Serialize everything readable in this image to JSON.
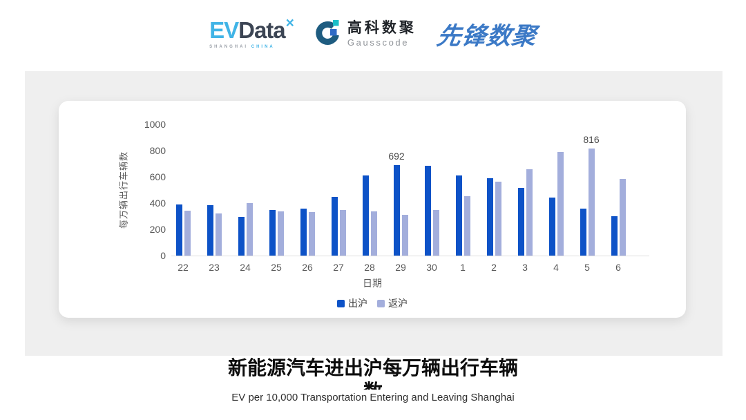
{
  "header": {
    "logos": {
      "evdata": {
        "ev": "EV",
        "data": "Data",
        "mark": "×",
        "sub_left": "SHANGHAI",
        "sub_right": "CHINA"
      },
      "gausscode": {
        "cn": "高科数聚",
        "en": "Gausscode"
      },
      "xianfeng": {
        "text": "先锋数聚"
      }
    }
  },
  "colors": {
    "evdata_cyan": "#41B4E6",
    "evdata_dark": "#3C4554",
    "evdata_sub_gray": "#9aa0a8",
    "gausscode_navy": "#1E5C80",
    "gausscode_teal": "#1CBFC9",
    "gausscode_blue": "#2F6BC6",
    "xianfeng_blue": "#3B79C6",
    "bar_dark": "#0D52C7",
    "bar_light": "#A3AEDC",
    "axis_text": "#595959",
    "panel_gray": "#efefef"
  },
  "chart_data": {
    "type": "bar",
    "title": "新能源汽车进出沪每万辆出行车辆数",
    "categories": [
      "22",
      "23",
      "24",
      "25",
      "26",
      "27",
      "28",
      "29",
      "30",
      "1",
      "2",
      "3",
      "4",
      "5",
      "6"
    ],
    "series": [
      {
        "name": "出沪",
        "color": "#0D52C7",
        "values": [
          390,
          385,
          295,
          348,
          360,
          448,
          608,
          692,
          682,
          610,
          588,
          515,
          440,
          358,
          298
        ]
      },
      {
        "name": "返沪",
        "color": "#A3AEDC",
        "values": [
          340,
          320,
          400,
          338,
          333,
          346,
          335,
          310,
          350,
          452,
          562,
          660,
          788,
          816,
          586
        ]
      }
    ],
    "label_points": [
      {
        "series_index": 0,
        "category_index": 7,
        "text": "692"
      },
      {
        "series_index": 1,
        "category_index": 13,
        "text": "816"
      }
    ],
    "ylabel": "每万辆出行车辆数",
    "xlabel": "日期",
    "ylim": [
      0,
      1000
    ],
    "yticks": [
      0,
      200,
      400,
      600,
      800,
      1000
    ],
    "grid": false,
    "legend_position": "bottom"
  },
  "footer": {
    "title_line1": "新能源汽车进出沪每万辆出行车辆",
    "title_line2": "数",
    "subtitle": "EV per 10,000 Transportation Entering and Leaving Shanghai"
  }
}
